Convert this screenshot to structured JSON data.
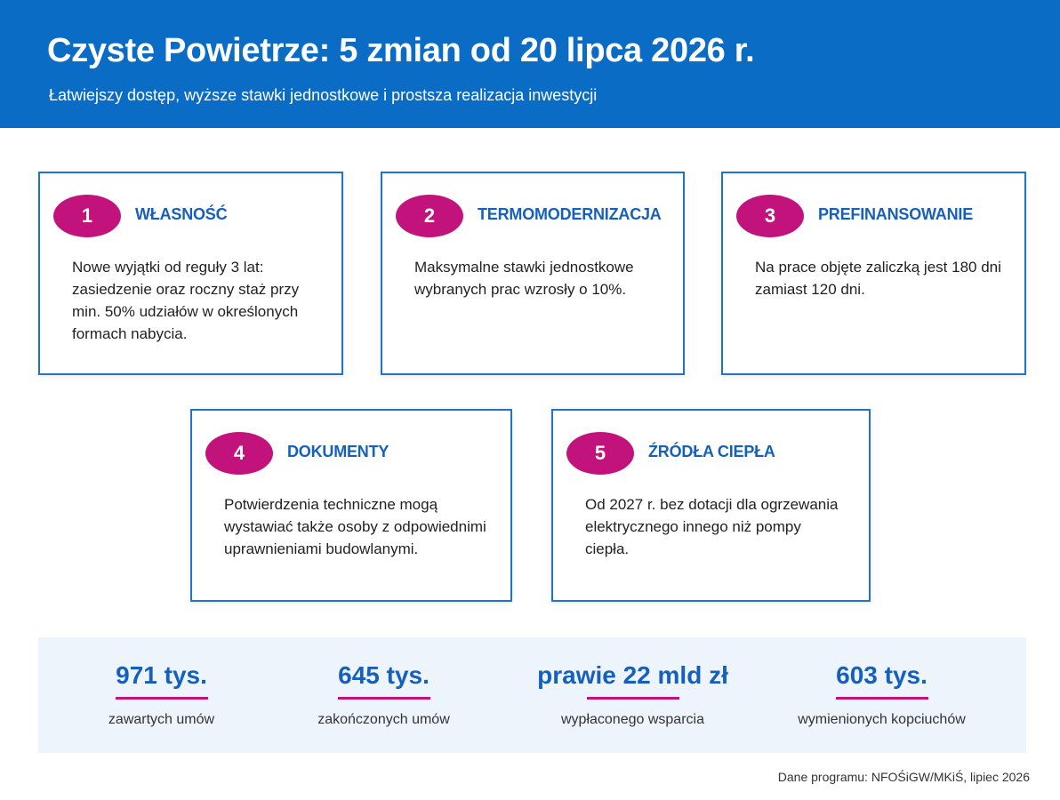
{
  "header": {
    "title": "Czyste Powietrze: 5 zmian od 20 lipca 2026 r.",
    "subtitle": "Łatwiejszy dostęp, wyższe stawki jednostkowe i prostsza realizacja inwestycji"
  },
  "cards": [
    {
      "number": "1",
      "title": "WŁASNOŚĆ",
      "lines": [
        "Nowe wyjątki od reguły 3 lat:",
        "zasiedzenie oraz roczny staż przy",
        "min. 50% udziałów w określonych",
        "formach nabycia."
      ]
    },
    {
      "number": "2",
      "title": "TERMOMODERNIZACJA",
      "lines": [
        "Maksymalne stawki jednostkowe",
        "wybranych prac wzrosły o 10%."
      ]
    },
    {
      "number": "3",
      "title": "PREFINANSOWANIE",
      "lines": [
        "Na prace objęte zaliczką jest 180 dni",
        "zamiast 120 dni."
      ]
    },
    {
      "number": "4",
      "title": "DOKUMENTY",
      "lines": [
        "Potwierdzenia techniczne mogą",
        "wystawiać także osoby z odpowiednimi",
        "uprawnieniami budowlanymi."
      ]
    },
    {
      "number": "5",
      "title": "ŹRÓDŁA CIEPŁA",
      "lines": [
        "Od 2027 r. bez dotacji dla ogrzewania",
        "elektrycznego innego niż pompy",
        "ciepła."
      ]
    }
  ],
  "stats": [
    {
      "value": "971 tys.",
      "label": "zawartych umów"
    },
    {
      "value": "645 tys.",
      "label": "zakończonych umów"
    },
    {
      "value": "prawie 22 mld zł",
      "label": "wypłaconego wsparcia"
    },
    {
      "value": "603 tys.",
      "label": "wymienionych kopciuchów"
    }
  ],
  "source": "Dane programu: NFOŚiGW/MKiŚ, lipiec 2026",
  "colors": {
    "header_bg": "#0a6cc4",
    "accent_blue": "#1560bd",
    "badge_magenta": "#c2137c",
    "stats_bg": "#eef4fb"
  }
}
